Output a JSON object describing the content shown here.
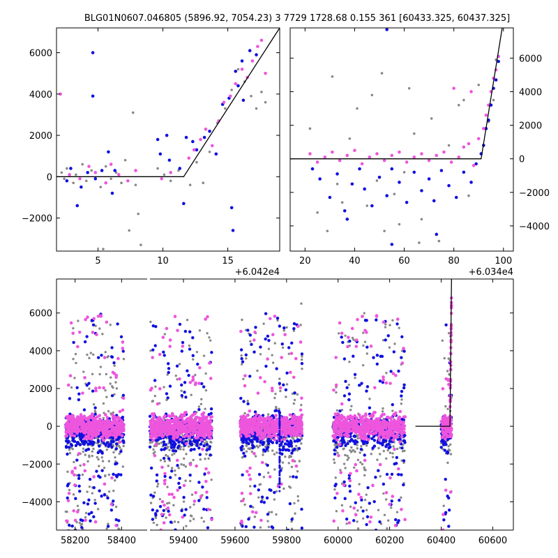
{
  "figure_title": "BLG01N0607.046805 (5896.92, 7054.23)   3 7729 1728.68 0.155 361 [60433.325, 60437.325]",
  "colors": {
    "grey": "#888888",
    "blue": "#1010e0",
    "magenta": "#ee55dd",
    "model": "#000000",
    "axes": "#000000"
  },
  "chart_data": [
    {
      "type": "scatter",
      "panel": "top-left",
      "xlim": [
        1.8,
        19.0
      ],
      "ylim": [
        -3600,
        7200
      ],
      "x_offset_label": "+6.042e4",
      "xticks": [
        5,
        10,
        15
      ],
      "xtick_labels": [
        "5",
        "10",
        "15"
      ],
      "yticks": [
        -2000,
        0,
        2000,
        4000,
        6000
      ],
      "ytick_labels": [
        "−2000",
        "0",
        "2000",
        "4000",
        "6000"
      ],
      "ytick_side": "left",
      "grid": false,
      "model_line": {
        "x": [
          1.8,
          11.6,
          19.0
        ],
        "y": [
          0,
          0,
          7200
        ]
      },
      "series": [
        {
          "color": "grey",
          "points": [
            [
              2.2,
              200
            ],
            [
              2.4,
              -100
            ],
            [
              2.6,
              400
            ],
            [
              3.1,
              -300
            ],
            [
              3.3,
              100
            ],
            [
              3.8,
              600
            ],
            [
              4.1,
              -200
            ],
            [
              4.5,
              300
            ],
            [
              5.2,
              -500
            ],
            [
              5.6,
              500
            ],
            [
              6.0,
              -100
            ],
            [
              6.4,
              200
            ],
            [
              6.8,
              -300
            ],
            [
              7.1,
              800
            ],
            [
              7.4,
              -2600
            ],
            [
              7.7,
              3100
            ],
            [
              7.9,
              -400
            ],
            [
              8.1,
              -1800
            ],
            [
              8.3,
              -3300
            ],
            [
              9.6,
              400
            ],
            [
              10.1,
              100
            ],
            [
              10.6,
              -200
            ],
            [
              11.2,
              300
            ],
            [
              12.1,
              -400
            ],
            [
              12.6,
              700
            ],
            [
              13.1,
              -300
            ],
            [
              13.6,
              1200
            ],
            [
              14.2,
              2600
            ],
            [
              14.8,
              3300
            ],
            [
              15.3,
              4200
            ],
            [
              15.8,
              5200
            ],
            [
              16.3,
              4600
            ],
            [
              16.8,
              3900
            ],
            [
              17.2,
              3300
            ],
            [
              17.6,
              4100
            ],
            [
              17.9,
              3600
            ],
            [
              5.4,
              -3500
            ]
          ]
        },
        {
          "color": "blue",
          "points": [
            [
              2.6,
              -200
            ],
            [
              2.9,
              400
            ],
            [
              3.4,
              -1400
            ],
            [
              3.7,
              -500
            ],
            [
              4.2,
              200
            ],
            [
              4.6,
              6000
            ],
            [
              4.6,
              3900
            ],
            [
              4.8,
              -100
            ],
            [
              5.3,
              300
            ],
            [
              5.8,
              1200
            ],
            [
              6.1,
              -800
            ],
            [
              6.3,
              300
            ],
            [
              9.6,
              1800
            ],
            [
              9.8,
              1100
            ],
            [
              10.3,
              2000
            ],
            [
              10.5,
              800
            ],
            [
              11.3,
              400
            ],
            [
              11.6,
              -1300
            ],
            [
              11.8,
              1900
            ],
            [
              12.3,
              1700
            ],
            [
              12.6,
              1300
            ],
            [
              13.2,
              1900
            ],
            [
              13.6,
              2200
            ],
            [
              14.1,
              1100
            ],
            [
              14.6,
              3500
            ],
            [
              15.1,
              3800
            ],
            [
              15.6,
              5100
            ],
            [
              15.8,
              4400
            ],
            [
              16.2,
              3700
            ],
            [
              16.7,
              6100
            ],
            [
              15.3,
              -1500
            ],
            [
              15.4,
              -2600
            ],
            [
              16.1,
              5600
            ],
            [
              17.2,
              5900
            ]
          ]
        },
        {
          "color": "magenta",
          "points": [
            [
              2.1,
              4000
            ],
            [
              2.8,
              100
            ],
            [
              3.6,
              -100
            ],
            [
              4.3,
              500
            ],
            [
              4.8,
              200
            ],
            [
              5.6,
              -300
            ],
            [
              6.0,
              600
            ],
            [
              6.6,
              100
            ],
            [
              7.3,
              -200
            ],
            [
              7.9,
              300
            ],
            [
              9.9,
              -100
            ],
            [
              10.6,
              200
            ],
            [
              12.0,
              900
            ],
            [
              12.4,
              1300
            ],
            [
              12.9,
              1800
            ],
            [
              13.3,
              2300
            ],
            [
              13.8,
              1500
            ],
            [
              14.3,
              2700
            ],
            [
              14.7,
              3600
            ],
            [
              15.2,
              3900
            ],
            [
              15.6,
              4500
            ],
            [
              16.1,
              5200
            ],
            [
              16.5,
              4800
            ],
            [
              16.9,
              5600
            ],
            [
              17.3,
              6300
            ],
            [
              17.6,
              6600
            ],
            [
              17.9,
              5000
            ]
          ]
        }
      ]
    },
    {
      "type": "scatter",
      "panel": "top-right",
      "xlim": [
        14.0,
        104.0
      ],
      "ylim": [
        -5500,
        7800
      ],
      "x_offset_label": "+6.034e4",
      "xticks": [
        20,
        40,
        60,
        80,
        100
      ],
      "xtick_labels": [
        "20",
        "40",
        "60",
        "80",
        "100"
      ],
      "yticks": [
        -4000,
        -2000,
        0,
        2000,
        4000,
        6000
      ],
      "ytick_labels": [
        "−4000",
        "−2000",
        "0",
        "2000",
        "4000",
        "6000"
      ],
      "ytick_side": "right",
      "grid": false,
      "model_line": {
        "x": [
          14.0,
          91.0,
          99.5
        ],
        "y": [
          0,
          0,
          7800
        ]
      },
      "series": [
        {
          "color": "grey",
          "points": [
            [
              22,
              1800
            ],
            [
              25,
              -3200
            ],
            [
              29,
              -4300
            ],
            [
              33,
              -1500
            ],
            [
              38,
              1200
            ],
            [
              41,
              3000
            ],
            [
              45,
              -2800
            ],
            [
              49,
              -1300
            ],
            [
              51,
              5100
            ],
            [
              56,
              -2100
            ],
            [
              60,
              -800
            ],
            [
              64,
              1500
            ],
            [
              67,
              -3600
            ],
            [
              71,
              2400
            ],
            [
              74,
              -4900
            ],
            [
              78,
              800
            ],
            [
              82,
              3200
            ],
            [
              86,
              -2200
            ],
            [
              90,
              4400
            ],
            [
              94,
              2200
            ],
            [
              96,
              3500
            ],
            [
              97,
              5900
            ],
            [
              31,
              4900
            ],
            [
              35,
              -2600
            ],
            [
              47,
              3800
            ],
            [
              52,
              -4300
            ],
            [
              58,
              -3900
            ],
            [
              62,
              4200
            ],
            [
              66,
              -5000
            ],
            [
              84,
              3500
            ]
          ]
        },
        {
          "color": "blue",
          "points": [
            [
              23,
              -600
            ],
            [
              26,
              -1200
            ],
            [
              30,
              -2300
            ],
            [
              33,
              -900
            ],
            [
              36,
              -3100
            ],
            [
              39,
              -1500
            ],
            [
              42,
              -600
            ],
            [
              44,
              -1800
            ],
            [
              47,
              -2800
            ],
            [
              50,
              -1100
            ],
            [
              53,
              -2200
            ],
            [
              55,
              -600
            ],
            [
              58,
              -1400
            ],
            [
              61,
              -2600
            ],
            [
              64,
              -800
            ],
            [
              67,
              -1900
            ],
            [
              70,
              -1200
            ],
            [
              72,
              -2500
            ],
            [
              75,
              -700
            ],
            [
              78,
              -1600
            ],
            [
              81,
              -2300
            ],
            [
              84,
              -800
            ],
            [
              87,
              -1400
            ],
            [
              89,
              -300
            ],
            [
              91,
              300
            ],
            [
              92,
              800
            ],
            [
              93,
              1800
            ],
            [
              94,
              2300
            ],
            [
              95,
              3200
            ],
            [
              96,
              4200
            ],
            [
              97,
              4700
            ],
            [
              98,
              5800
            ],
            [
              53,
              7700
            ],
            [
              73,
              -4500
            ],
            [
              55,
              -5100
            ],
            [
              37,
              -3600
            ]
          ]
        },
        {
          "color": "magenta",
          "points": [
            [
              22,
              300
            ],
            [
              25,
              -200
            ],
            [
              28,
              100
            ],
            [
              31,
              400
            ],
            [
              34,
              -100
            ],
            [
              37,
              200
            ],
            [
              40,
              500
            ],
            [
              43,
              -300
            ],
            [
              46,
              100
            ],
            [
              49,
              300
            ],
            [
              52,
              -100
            ],
            [
              55,
              200
            ],
            [
              58,
              400
            ],
            [
              61,
              -200
            ],
            [
              64,
              100
            ],
            [
              67,
              300
            ],
            [
              70,
              -100
            ],
            [
              73,
              200
            ],
            [
              76,
              400
            ],
            [
              79,
              -200
            ],
            [
              82,
              100
            ],
            [
              84,
              700
            ],
            [
              86,
              900
            ],
            [
              88,
              -400
            ],
            [
              90,
              1200
            ],
            [
              92,
              1800
            ],
            [
              93,
              2600
            ],
            [
              94,
              3200
            ],
            [
              95,
              4000
            ],
            [
              96,
              4800
            ],
            [
              97,
              5300
            ],
            [
              98,
              6100
            ],
            [
              80,
              4200
            ],
            [
              87,
              4000
            ]
          ]
        }
      ]
    },
    {
      "type": "scatter",
      "panel": "bottom",
      "xlim": [
        58120,
        60680
      ],
      "ylim": [
        -5500,
        7800
      ],
      "xticks": [
        58200,
        58400,
        59400,
        59600,
        59800,
        60000,
        60200,
        60400,
        60600
      ],
      "xtick_labels": [
        "58200",
        "58400",
        "59400",
        "59600",
        "59800",
        "60000",
        "60200",
        "60400",
        "60600"
      ],
      "yticks": [
        -4000,
        -2000,
        0,
        2000,
        4000,
        6000
      ],
      "ytick_labels": [
        "−4000",
        "−2000",
        "0",
        "2000",
        "4000",
        "6000"
      ],
      "ytick_side": "left",
      "grid": false,
      "axis_break": {
        "x_from": 58510,
        "x_to": 59270
      },
      "model_line": {
        "x": [
          60300,
          60434,
          60440
        ],
        "y": [
          0,
          0,
          7800
        ]
      },
      "season_ranges": [
        [
          58160,
          58410
        ],
        [
          59270,
          59510
        ],
        [
          59620,
          59860
        ],
        [
          59980,
          60260
        ],
        [
          60400,
          60440
        ]
      ],
      "season_ranges_note": "observing seasons (MJD) spanned by the dense point clouds",
      "series_seed": 7
    }
  ]
}
